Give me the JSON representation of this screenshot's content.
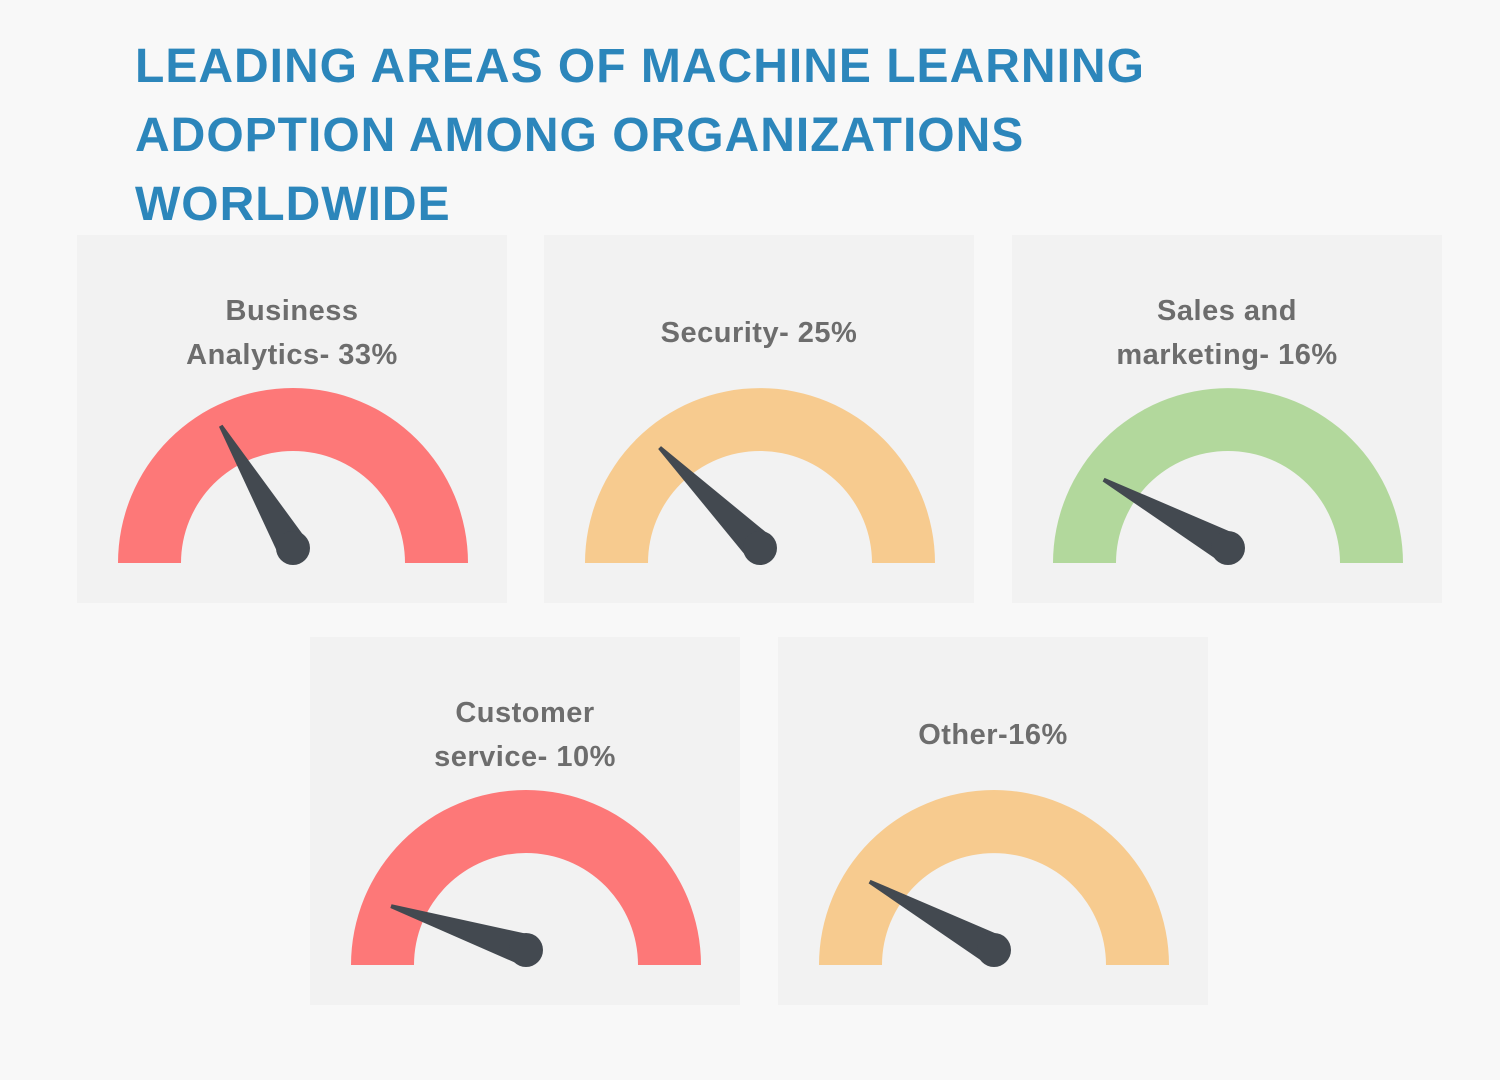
{
  "title": "LEADING AREAS OF MACHINE LEARNING ADOPTION AMONG ORGANIZATIONS WORLDWIDE",
  "chart_data": [
    {
      "type": "gauge",
      "label": "Business Analytics- 33%",
      "value": 33,
      "ylim": [
        0,
        100
      ],
      "color": "#fd7878"
    },
    {
      "type": "gauge",
      "label": "Security- 25%",
      "value": 25,
      "ylim": [
        0,
        100
      ],
      "color": "#f7cb8f"
    },
    {
      "type": "gauge",
      "label": "Sales and marketing- 16%",
      "value": 16,
      "ylim": [
        0,
        100
      ],
      "color": "#b2d89c"
    },
    {
      "type": "gauge",
      "label": "Customer service- 10%",
      "value": 10,
      "ylim": [
        0,
        100
      ],
      "color": "#fd7878"
    },
    {
      "type": "gauge",
      "label": "Other-16%",
      "value": 16,
      "ylim": [
        0,
        100
      ],
      "color": "#f7cb8f"
    }
  ]
}
